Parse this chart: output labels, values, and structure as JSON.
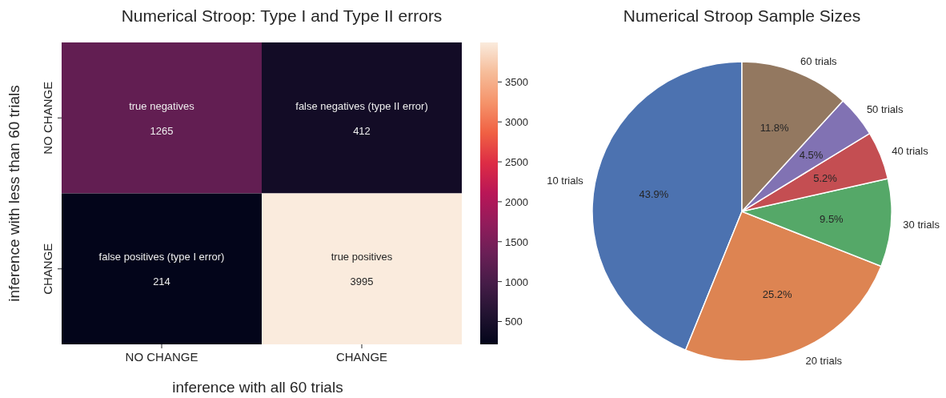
{
  "chart_data": [
    {
      "type": "heatmap",
      "title": "Numerical Stroop: Type I and Type II errors",
      "xlabel": "inference with all 60 trials",
      "ylabel": "inference with less than 60 trials",
      "categories": [
        "NO CHANGE",
        "CHANGE"
      ],
      "y_categories": [
        "NO CHANGE",
        "CHANGE"
      ],
      "cells": [
        [
          1265,
          412
        ],
        [
          214,
          3995
        ]
      ],
      "cell_labels": [
        [
          "true negatives\n1265",
          "false negatives (type II error)\n412"
        ],
        [
          "false positives (type I error)\n214",
          "true positives\n3995"
        ]
      ],
      "clim": [
        214,
        3995
      ],
      "cticks": [
        500,
        1000,
        1500,
        2000,
        2500,
        3000,
        3500
      ]
    },
    {
      "type": "pie",
      "title": "Numerical Stroop Sample Sizes",
      "categories": [
        "10 trials",
        "20 trials",
        "30 trials",
        "40 trials",
        "50 trials",
        "60 trials"
      ],
      "values": [
        43.9,
        25.2,
        9.5,
        5.2,
        4.5,
        11.8
      ],
      "colors": [
        "#4c72b0",
        "#dd8452",
        "#55a868",
        "#c44e52",
        "#8172b3",
        "#937860"
      ],
      "value_labels": [
        "43.9%",
        "25.2%",
        "9.5%",
        "5.2%",
        "4.5%",
        "11.8%"
      ]
    }
  ]
}
